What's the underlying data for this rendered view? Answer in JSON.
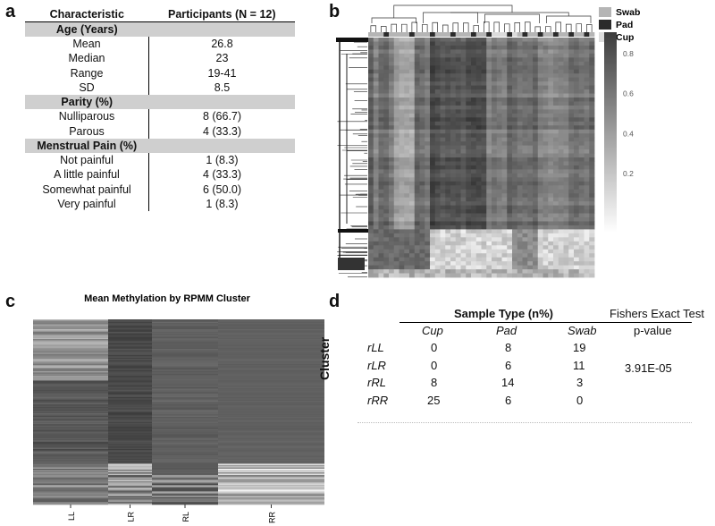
{
  "panels": {
    "a": "a",
    "b": "b",
    "c": "c",
    "d": "d"
  },
  "table_a": {
    "col1": "Characteristic",
    "col2": "Participants (N = 12)",
    "rows": [
      {
        "type": "section",
        "label": "Age (Years)"
      },
      {
        "type": "row",
        "label": "Mean",
        "value": "26.8"
      },
      {
        "type": "row",
        "label": "Median",
        "value": "23"
      },
      {
        "type": "row",
        "label": "Range",
        "value": "19-41"
      },
      {
        "type": "row",
        "label": "SD",
        "value": "8.5"
      },
      {
        "type": "section",
        "label": "Parity (%)"
      },
      {
        "type": "row",
        "label": "Nulliparous",
        "value": "8 (66.7)"
      },
      {
        "type": "row",
        "label": "Parous",
        "value": "4 (33.3)"
      },
      {
        "type": "section",
        "label": "Menstrual Pain (%)"
      },
      {
        "type": "row",
        "label": "Not painful",
        "value": "1 (8.3)"
      },
      {
        "type": "row",
        "label": "A little painful",
        "value": "4 (33.3)"
      },
      {
        "type": "row",
        "label": "Somewhat painful",
        "value": "6 (50.0)"
      },
      {
        "type": "row",
        "label": "Very painful",
        "value": "1 (8.3)"
      }
    ]
  },
  "heatmap_b": {
    "legend": [
      {
        "label": "Swab",
        "color": "#b5b5b5"
      },
      {
        "label": "Pad",
        "color": "#2b2b2b"
      },
      {
        "label": "Cup",
        "color": "#dcdcdc"
      }
    ],
    "colorbar_ticks": [
      "0.8",
      "0.6",
      "0.4",
      "0.2"
    ],
    "colorbar_values": [
      0.8,
      0.6,
      0.4,
      0.2
    ]
  },
  "chart_data": {
    "type": "heatmap",
    "title": "Mean Methylation by RPMM Cluster",
    "categories": [
      "LL",
      "LR",
      "RL",
      "RR"
    ]
  },
  "table_d": {
    "header_group": "Sample Type  (n%)",
    "test_header": "Fishers Exact Test",
    "test_sub": "p-value",
    "row_axis_label": "Cluster",
    "columns": [
      "Cup",
      "Pad",
      "Swab"
    ],
    "rows": [
      {
        "label": "rLL",
        "values": [
          "0",
          "8",
          "19"
        ]
      },
      {
        "label": "rLR",
        "values": [
          "0",
          "6",
          "11"
        ]
      },
      {
        "label": "rRL",
        "values": [
          "8",
          "14",
          "3"
        ]
      },
      {
        "label": "rRR",
        "values": [
          "25",
          "6",
          "0"
        ]
      }
    ],
    "p_value": "3.91E-05"
  }
}
